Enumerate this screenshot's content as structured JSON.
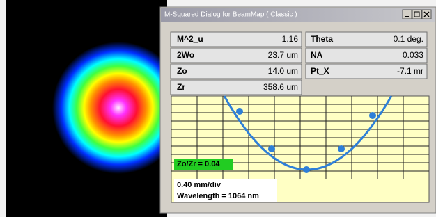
{
  "dialog": {
    "title": "M-Squared Dialog for BeamMap ( Classic )",
    "fields": [
      {
        "label": "M^2_u",
        "value": "1.16"
      },
      {
        "label": "Theta",
        "value": "0.1 deg."
      },
      {
        "label": "2Wo",
        "value": "23.7 um"
      },
      {
        "label": "NA",
        "value": "0.033"
      },
      {
        "label": "Zo",
        "value": "14.0 um"
      },
      {
        "label": "Pt_X",
        "value": "-7.1 mr"
      },
      {
        "label": "Zr",
        "value": "358.6 um"
      }
    ],
    "plot": {
      "ratio_label": "Zo/Zr = 0.04",
      "scale": "0.40 mm/div",
      "wavelength": "Wavelength = 1064 nm"
    }
  }
}
